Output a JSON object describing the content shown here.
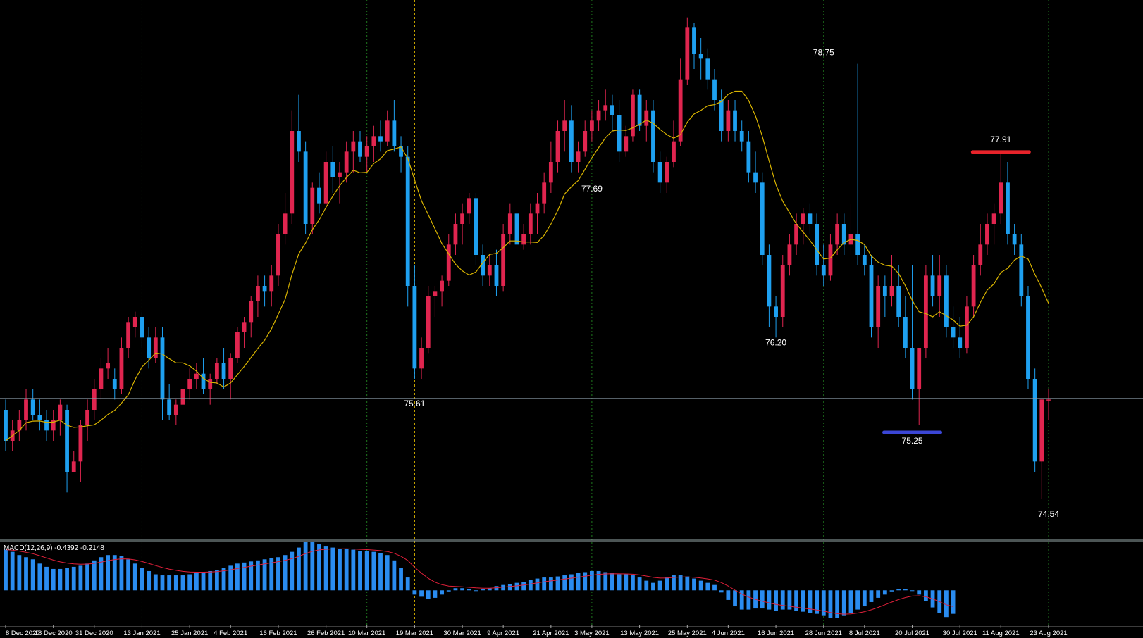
{
  "colors": {
    "background": "#000000",
    "bull_candle": "#e0254f",
    "bear_candle": "#1ea0f0",
    "ma_line": "#d9b400",
    "current_price_line": "#8a9aa6",
    "grid": "#1f7a1f",
    "cursor_line": "#d9b400",
    "macd_hist": "#2a8cf0",
    "macd_signal": "#e0203a",
    "resistance_marker": "#e8232a",
    "support_marker": "#3b46d6",
    "text": "#ffffff"
  },
  "chart_data": {
    "type": "candlestick",
    "y_range": [
      74.2,
      79.3
    ],
    "current_price": 75.51,
    "x_labels": [
      "8 Dec 2020",
      "18 Dec 2020",
      "31 Dec 2020",
      "13 Jan 2021",
      "25 Jan 2021",
      "4 Feb 2021",
      "16 Feb 2021",
      "26 Feb 2021",
      "10 Mar 2021",
      "19 Mar 2021",
      "30 Mar 2021",
      "9 Apr 2021",
      "21 Apr 2021",
      "3 May 2021",
      "13 May 2021",
      "25 May 2021",
      "4 Jun 2021",
      "16 Jun 2021",
      "28 Jun 2021",
      "8 Jul 2021",
      "20 Jul 2021",
      "30 Jul 2021",
      "11 Aug 2021",
      "23 Aug 2021"
    ],
    "annotations": [
      {
        "label": "75.61",
        "value": 75.61,
        "near_label": "19 Mar 2021",
        "position": "below"
      },
      {
        "label": "77.69",
        "value": 77.69,
        "near_label": "3 May 2021",
        "position": "below"
      },
      {
        "label": "78.75",
        "value": 78.75,
        "near_label": "28 Jun 2021",
        "position": "above"
      },
      {
        "label": "76.20",
        "value": 76.2,
        "near_label": "16 Jun 2021",
        "position": "below"
      },
      {
        "label": "75.25",
        "value": 75.25,
        "near_label": "20 Jul 2021",
        "position": "below",
        "marker": "support"
      },
      {
        "label": "77.91",
        "value": 77.91,
        "near_label": "11 Aug 2021",
        "position": "above",
        "marker": "resistance"
      },
      {
        "label": "74.54",
        "value": 74.54,
        "near_label": "23 Aug 2021",
        "position": "below"
      }
    ],
    "indicator": {
      "label": "MACD(12,26,9) -0.4392 -0.2148",
      "name": "MACD",
      "params": [
        12,
        26,
        9
      ],
      "macd": -0.4392,
      "signal": -0.2148,
      "range": [
        -0.55,
        0.9
      ],
      "histogram": [
        0.76,
        0.72,
        0.66,
        0.62,
        0.58,
        0.5,
        0.44,
        0.4,
        0.4,
        0.42,
        0.44,
        0.46,
        0.5,
        0.56,
        0.62,
        0.66,
        0.66,
        0.64,
        0.58,
        0.5,
        0.42,
        0.36,
        0.3,
        0.28,
        0.28,
        0.28,
        0.28,
        0.3,
        0.32,
        0.34,
        0.36,
        0.38,
        0.42,
        0.46,
        0.5,
        0.52,
        0.54,
        0.56,
        0.58,
        0.6,
        0.62,
        0.66,
        0.72,
        0.8,
        0.9,
        0.9,
        0.86,
        0.82,
        0.8,
        0.78,
        0.78,
        0.76,
        0.74,
        0.74,
        0.72,
        0.7,
        0.66,
        0.56,
        0.42,
        0.24,
        -0.08,
        -0.12,
        -0.16,
        -0.14,
        -0.08,
        -0.02,
        0.04,
        0.04,
        0.02,
        0.0,
        0.02,
        0.04,
        0.08,
        0.1,
        0.12,
        0.14,
        0.16,
        0.2,
        0.22,
        0.24,
        0.24,
        0.26,
        0.28,
        0.3,
        0.32,
        0.34,
        0.36,
        0.36,
        0.34,
        0.32,
        0.3,
        0.3,
        0.28,
        0.24,
        0.18,
        0.14,
        0.18,
        0.24,
        0.28,
        0.28,
        0.26,
        0.22,
        0.18,
        0.14,
        0.1,
        -0.04,
        -0.18,
        -0.3,
        -0.36,
        -0.36,
        -0.34,
        -0.34,
        -0.36,
        -0.38,
        -0.36,
        -0.36,
        -0.38,
        -0.4,
        -0.42,
        -0.44,
        -0.48,
        -0.52,
        -0.52,
        -0.48,
        -0.42,
        -0.36,
        -0.3,
        -0.22,
        -0.14,
        -0.08,
        -0.02,
        0.02,
        0.02,
        0.0,
        -0.08,
        -0.2,
        -0.32,
        -0.42,
        -0.5,
        -0.44
      ]
    },
    "candles": [
      [
        75.4,
        75.5,
        75.0,
        75.1
      ],
      [
        75.1,
        75.3,
        75.0,
        75.2
      ],
      [
        75.2,
        75.4,
        75.1,
        75.3
      ],
      [
        75.3,
        75.6,
        75.2,
        75.5
      ],
      [
        75.5,
        75.6,
        75.3,
        75.35
      ],
      [
        75.35,
        75.5,
        75.2,
        75.3
      ],
      [
        75.3,
        75.4,
        75.1,
        75.2
      ],
      [
        75.2,
        75.4,
        75.1,
        75.3
      ],
      [
        75.3,
        75.5,
        75.15,
        75.45
      ],
      [
        75.4,
        75.45,
        74.6,
        74.8
      ],
      [
        74.8,
        75.0,
        74.8,
        74.9
      ],
      [
        74.9,
        75.3,
        74.7,
        75.25
      ],
      [
        75.25,
        75.5,
        75.1,
        75.4
      ],
      [
        75.4,
        75.7,
        75.3,
        75.6
      ],
      [
        75.6,
        75.9,
        75.5,
        75.8
      ],
      [
        75.8,
        76.0,
        75.7,
        75.85
      ],
      [
        75.7,
        75.8,
        75.5,
        75.6
      ],
      [
        75.6,
        76.1,
        75.55,
        76.0
      ],
      [
        76.0,
        76.3,
        75.9,
        76.25
      ],
      [
        76.2,
        76.35,
        76.1,
        76.3
      ],
      [
        76.3,
        76.35,
        76.0,
        76.1
      ],
      [
        76.1,
        76.2,
        75.8,
        75.9
      ],
      [
        75.9,
        76.2,
        75.85,
        76.1
      ],
      [
        76.1,
        76.2,
        75.3,
        75.5
      ],
      [
        75.5,
        75.65,
        75.3,
        75.35
      ],
      [
        75.35,
        75.5,
        75.25,
        75.45
      ],
      [
        75.45,
        75.7,
        75.4,
        75.6
      ],
      [
        75.6,
        75.8,
        75.5,
        75.7
      ],
      [
        75.7,
        75.85,
        75.6,
        75.75
      ],
      [
        75.75,
        75.9,
        75.55,
        75.6
      ],
      [
        75.6,
        75.75,
        75.45,
        75.7
      ],
      [
        75.7,
        75.9,
        75.65,
        75.85
      ],
      [
        75.85,
        76.0,
        75.6,
        75.7
      ],
      [
        75.7,
        75.95,
        75.5,
        75.9
      ],
      [
        75.9,
        76.2,
        75.85,
        76.15
      ],
      [
        76.15,
        76.3,
        76.0,
        76.25
      ],
      [
        76.25,
        76.5,
        76.1,
        76.45
      ],
      [
        76.45,
        76.7,
        76.3,
        76.6
      ],
      [
        76.6,
        76.7,
        76.4,
        76.55
      ],
      [
        76.55,
        76.8,
        76.4,
        76.7
      ],
      [
        76.7,
        77.2,
        76.6,
        77.1
      ],
      [
        77.1,
        77.5,
        77.0,
        77.3
      ],
      [
        77.3,
        78.3,
        77.2,
        78.1
      ],
      [
        78.1,
        78.45,
        77.8,
        77.9
      ],
      [
        77.9,
        78.0,
        77.1,
        77.2
      ],
      [
        77.2,
        77.6,
        77.1,
        77.55
      ],
      [
        77.55,
        77.7,
        77.3,
        77.4
      ],
      [
        77.4,
        77.9,
        77.35,
        77.8
      ],
      [
        77.8,
        77.95,
        77.5,
        77.65
      ],
      [
        77.65,
        77.8,
        77.4,
        77.7
      ],
      [
        77.7,
        78.0,
        77.6,
        77.9
      ],
      [
        77.9,
        78.1,
        77.7,
        78.0
      ],
      [
        78.0,
        78.1,
        77.8,
        77.85
      ],
      [
        77.85,
        78.05,
        77.7,
        77.95
      ],
      [
        77.95,
        78.15,
        77.8,
        78.05
      ],
      [
        78.05,
        78.2,
        77.9,
        78.0
      ],
      [
        78.0,
        78.3,
        77.95,
        78.2
      ],
      [
        78.2,
        78.4,
        77.9,
        77.95
      ],
      [
        77.95,
        78.05,
        77.7,
        77.85
      ],
      [
        77.85,
        77.95,
        76.4,
        76.6
      ],
      [
        76.6,
        76.8,
        75.7,
        75.8
      ],
      [
        75.8,
        76.1,
        75.7,
        76.0
      ],
      [
        76.0,
        76.6,
        75.95,
        76.5
      ],
      [
        76.5,
        76.6,
        76.3,
        76.55
      ],
      [
        76.55,
        76.7,
        76.4,
        76.65
      ],
      [
        76.65,
        77.1,
        76.6,
        77.0
      ],
      [
        77.0,
        77.3,
        76.9,
        77.2
      ],
      [
        77.2,
        77.4,
        77.0,
        77.3
      ],
      [
        77.3,
        77.5,
        77.2,
        77.45
      ],
      [
        77.45,
        77.5,
        76.8,
        76.9
      ],
      [
        76.9,
        77.0,
        76.6,
        76.7
      ],
      [
        76.7,
        76.9,
        76.6,
        76.8
      ],
      [
        76.8,
        76.95,
        76.5,
        76.6
      ],
      [
        76.6,
        77.2,
        76.55,
        77.1
      ],
      [
        77.1,
        77.4,
        77.0,
        77.3
      ],
      [
        77.3,
        77.5,
        76.9,
        77.0
      ],
      [
        77.0,
        77.2,
        76.95,
        77.1
      ],
      [
        77.1,
        77.4,
        77.0,
        77.3
      ],
      [
        77.3,
        77.5,
        77.1,
        77.4
      ],
      [
        77.4,
        77.7,
        77.3,
        77.6
      ],
      [
        77.6,
        78.0,
        77.5,
        77.8
      ],
      [
        77.8,
        78.2,
        77.7,
        78.1
      ],
      [
        78.1,
        78.4,
        77.9,
        78.2
      ],
      [
        78.2,
        78.35,
        77.7,
        77.8
      ],
      [
        77.8,
        78.0,
        77.7,
        77.9
      ],
      [
        77.9,
        78.2,
        77.85,
        78.1
      ],
      [
        78.1,
        78.3,
        78.0,
        78.2
      ],
      [
        78.2,
        78.4,
        78.1,
        78.3
      ],
      [
        78.3,
        78.5,
        78.2,
        78.35
      ],
      [
        78.35,
        78.45,
        78.1,
        78.25
      ],
      [
        78.25,
        78.4,
        77.8,
        77.9
      ],
      [
        77.9,
        78.15,
        77.85,
        78.05
      ],
      [
        78.05,
        78.5,
        78.0,
        78.45
      ],
      [
        78.45,
        78.5,
        78.1,
        78.15
      ],
      [
        78.15,
        78.4,
        78.0,
        78.3
      ],
      [
        78.3,
        78.4,
        77.7,
        77.8
      ],
      [
        77.8,
        77.9,
        77.5,
        77.6
      ],
      [
        77.6,
        77.85,
        77.5,
        77.8
      ],
      [
        77.8,
        78.2,
        77.75,
        78.0
      ],
      [
        78.0,
        78.8,
        77.95,
        78.6
      ],
      [
        78.6,
        79.2,
        78.55,
        79.1
      ],
      [
        79.1,
        79.15,
        78.7,
        78.85
      ],
      [
        78.85,
        79.0,
        78.6,
        78.8
      ],
      [
        78.8,
        78.9,
        78.5,
        78.6
      ],
      [
        78.6,
        78.7,
        78.3,
        78.4
      ],
      [
        78.4,
        78.5,
        78.0,
        78.1
      ],
      [
        78.1,
        78.4,
        78.0,
        78.3
      ],
      [
        78.3,
        78.4,
        78.0,
        78.1
      ],
      [
        78.1,
        78.2,
        77.9,
        78.0
      ],
      [
        78.0,
        78.1,
        77.6,
        77.7
      ],
      [
        77.7,
        77.9,
        77.5,
        77.6
      ],
      [
        77.6,
        77.7,
        76.8,
        76.9
      ],
      [
        76.9,
        77.0,
        76.2,
        76.4
      ],
      [
        76.4,
        76.5,
        76.1,
        76.3
      ],
      [
        76.3,
        76.9,
        76.2,
        76.8
      ],
      [
        76.8,
        77.1,
        76.7,
        77.0
      ],
      [
        77.0,
        77.3,
        76.9,
        77.2
      ],
      [
        77.2,
        77.35,
        77.0,
        77.3
      ],
      [
        77.3,
        77.4,
        77.1,
        77.2
      ],
      [
        77.2,
        77.3,
        76.7,
        76.8
      ],
      [
        76.8,
        77.0,
        76.6,
        76.7
      ],
      [
        76.7,
        77.1,
        76.65,
        77.0
      ],
      [
        77.0,
        77.3,
        76.9,
        77.2
      ],
      [
        77.2,
        77.3,
        76.9,
        77.0
      ],
      [
        77.0,
        77.4,
        76.9,
        77.1
      ],
      [
        77.1,
        78.75,
        76.8,
        76.9
      ],
      [
        76.9,
        77.0,
        76.7,
        76.8
      ],
      [
        76.8,
        76.9,
        76.1,
        76.2
      ],
      [
        76.2,
        76.7,
        76.0,
        76.6
      ],
      [
        76.6,
        76.7,
        76.3,
        76.5
      ],
      [
        76.5,
        76.9,
        76.4,
        76.6
      ],
      [
        76.6,
        76.8,
        76.2,
        76.3
      ],
      [
        76.3,
        76.5,
        75.9,
        76.0
      ],
      [
        76.0,
        76.8,
        75.5,
        75.6
      ],
      [
        75.6,
        76.0,
        75.25,
        76.0
      ],
      [
        76.0,
        76.8,
        75.9,
        76.7
      ],
      [
        76.7,
        76.9,
        76.4,
        76.5
      ],
      [
        76.5,
        76.9,
        76.3,
        76.7
      ],
      [
        76.7,
        76.8,
        76.1,
        76.2
      ],
      [
        76.2,
        76.4,
        76.0,
        76.1
      ],
      [
        76.1,
        76.3,
        75.9,
        76.0
      ],
      [
        76.0,
        76.5,
        75.95,
        76.4
      ],
      [
        76.4,
        76.9,
        76.3,
        76.8
      ],
      [
        76.8,
        77.2,
        76.7,
        77.0
      ],
      [
        77.0,
        77.3,
        76.9,
        77.2
      ],
      [
        77.2,
        77.4,
        77.0,
        77.3
      ],
      [
        77.3,
        77.91,
        77.2,
        77.6
      ],
      [
        77.6,
        77.8,
        77.0,
        77.1
      ],
      [
        77.1,
        77.2,
        76.9,
        77.0
      ],
      [
        77.0,
        77.1,
        76.4,
        76.5
      ],
      [
        76.5,
        76.6,
        75.6,
        75.7
      ],
      [
        75.7,
        75.8,
        74.8,
        74.9
      ],
      [
        74.9,
        75.5,
        74.54,
        75.5
      ],
      [
        75.5,
        75.6,
        75.3,
        75.5
      ]
    ]
  }
}
